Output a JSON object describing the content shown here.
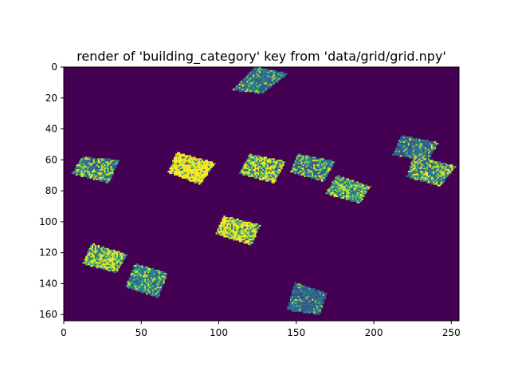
{
  "chart_data": {
    "type": "heatmap",
    "title": "render of 'building_category' key from 'data/grid/grid.npy'",
    "xlabel": "",
    "ylabel": "",
    "xlim": [
      0,
      255
    ],
    "ylim": [
      164,
      0
    ],
    "x_ticks": [
      0,
      50,
      100,
      150,
      200,
      250
    ],
    "y_ticks": [
      0,
      20,
      40,
      60,
      80,
      100,
      120,
      140,
      160
    ],
    "grid": false,
    "colormap": "viridis",
    "background_value_color": "#440154",
    "palette": [
      "#3b528b",
      "#2c728e",
      "#21918c",
      "#5ec962",
      "#b5de2b",
      "#fde725"
    ],
    "patches": [
      {
        "corners": [
          [
            108,
            15
          ],
          [
            124,
            0
          ],
          [
            145,
            4
          ],
          [
            128,
            17
          ]
        ],
        "mix": [
          0.3,
          0.3,
          0.2,
          0.1,
          0.05,
          0.05
        ]
      },
      {
        "corners": [
          [
            5,
            69
          ],
          [
            12,
            58
          ],
          [
            36,
            60
          ],
          [
            29,
            75
          ]
        ],
        "mix": [
          0.15,
          0.25,
          0.2,
          0.15,
          0.1,
          0.15
        ]
      },
      {
        "corners": [
          [
            67,
            68
          ],
          [
            73,
            55
          ],
          [
            98,
            62
          ],
          [
            88,
            76
          ]
        ],
        "mix": [
          0.02,
          0.03,
          0.05,
          0.05,
          0.1,
          0.75
        ]
      },
      {
        "corners": [
          [
            113,
            69
          ],
          [
            120,
            56
          ],
          [
            143,
            61
          ],
          [
            136,
            75
          ]
        ],
        "mix": [
          0.05,
          0.15,
          0.15,
          0.15,
          0.15,
          0.35
        ]
      },
      {
        "corners": [
          [
            146,
            68
          ],
          [
            151,
            56
          ],
          [
            175,
            61
          ],
          [
            168,
            74
          ]
        ],
        "mix": [
          0.2,
          0.25,
          0.2,
          0.15,
          0.1,
          0.1
        ]
      },
      {
        "corners": [
          [
            169,
            82
          ],
          [
            176,
            70
          ],
          [
            198,
            77
          ],
          [
            191,
            88
          ]
        ],
        "mix": [
          0.05,
          0.2,
          0.25,
          0.2,
          0.15,
          0.15
        ]
      },
      {
        "corners": [
          [
            212,
            57
          ],
          [
            218,
            44
          ],
          [
            242,
            49
          ],
          [
            235,
            60
          ]
        ],
        "mix": [
          0.4,
          0.25,
          0.2,
          0.08,
          0.04,
          0.03
        ]
      },
      {
        "corners": [
          [
            221,
            71
          ],
          [
            226,
            57
          ],
          [
            253,
            64
          ],
          [
            243,
            77
          ]
        ],
        "mix": [
          0.15,
          0.25,
          0.2,
          0.15,
          0.1,
          0.15
        ]
      },
      {
        "corners": [
          [
            98,
            108
          ],
          [
            103,
            96
          ],
          [
            127,
            102
          ],
          [
            121,
            115
          ]
        ],
        "mix": [
          0.05,
          0.1,
          0.1,
          0.15,
          0.15,
          0.45
        ]
      },
      {
        "corners": [
          [
            12,
            127
          ],
          [
            18,
            114
          ],
          [
            41,
            121
          ],
          [
            34,
            133
          ]
        ],
        "mix": [
          0.05,
          0.1,
          0.15,
          0.2,
          0.2,
          0.3
        ]
      },
      {
        "corners": [
          [
            40,
            142
          ],
          [
            46,
            127
          ],
          [
            67,
            133
          ],
          [
            61,
            149
          ]
        ],
        "mix": [
          0.1,
          0.3,
          0.3,
          0.15,
          0.1,
          0.05
        ]
      },
      {
        "corners": [
          [
            144,
            157
          ],
          [
            149,
            139
          ],
          [
            170,
            146
          ],
          [
            165,
            160
          ]
        ],
        "mix": [
          0.45,
          0.3,
          0.15,
          0.05,
          0.03,
          0.02
        ]
      }
    ]
  }
}
